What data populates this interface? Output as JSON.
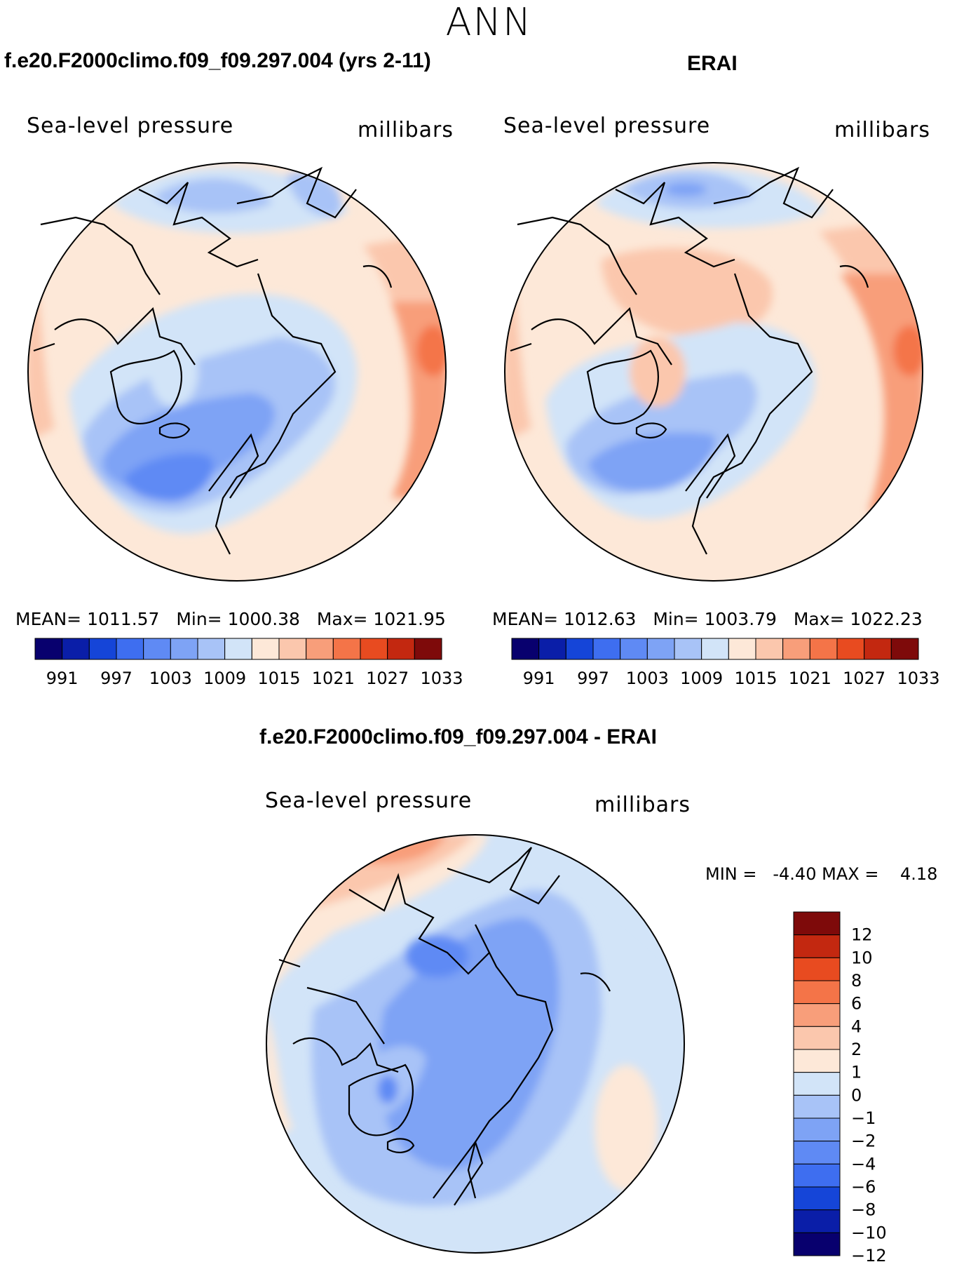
{
  "title": "ANN",
  "colors": {
    "scale": [
      "#08006e",
      "#0a1ea8",
      "#1545d8",
      "#3e6ef0",
      "#5f8af4",
      "#7ea3f5",
      "#a8c3f7",
      "#d2e4f8",
      "#fde8d8",
      "#fbc7ad",
      "#f89e7a",
      "#f47448",
      "#e84b20",
      "#c32810",
      "#7e0a0a"
    ],
    "coastline": "#000000"
  },
  "panels": [
    {
      "case": "f.e20.F2000climo.f09_f09.297.004 (yrs 2-11)",
      "variable": "Sea-level pressure",
      "units": "millibars",
      "stats": {
        "mean_label": "MEAN=",
        "mean": "1011.57",
        "min_label": "Min=",
        "min": "1000.38",
        "max_label": "Max=",
        "max": "1021.95"
      },
      "colorbar_labels": [
        "991",
        "997",
        "1003",
        "1009",
        "1015",
        "1021",
        "1027",
        "1033"
      ]
    },
    {
      "case": "ERAI",
      "variable": "Sea-level pressure",
      "units": "millibars",
      "stats": {
        "mean_label": "MEAN=",
        "mean": "1012.63",
        "min_label": "Min=",
        "min": "1003.79",
        "max_label": "Max=",
        "max": "1022.23"
      },
      "colorbar_labels": [
        "991",
        "997",
        "1003",
        "1009",
        "1015",
        "1021",
        "1027",
        "1033"
      ]
    }
  ],
  "difference": {
    "case": "f.e20.F2000climo.f09_f09.297.004 - ERAI",
    "variable": "Sea-level pressure",
    "units": "millibars",
    "stats": {
      "min_label": "MIN =",
      "min": "-4.40",
      "max_label": "MAX =",
      "max": "4.18"
    },
    "colorbar_labels": [
      "12",
      "10",
      "8",
      "6",
      "4",
      "2",
      "1",
      "0",
      "−1",
      "−2",
      "−4",
      "−6",
      "−8",
      "−10",
      "−12"
    ]
  }
}
